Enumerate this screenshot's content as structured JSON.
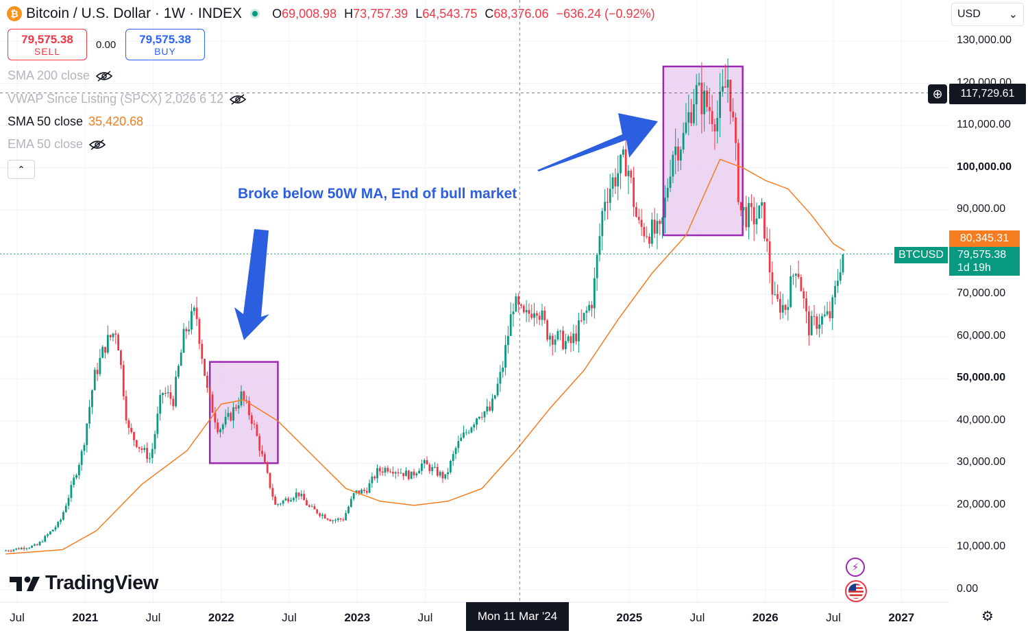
{
  "header": {
    "badge": "₿",
    "title": "Bitcoin / U.S. Dollar · 1W · INDEX",
    "open_label": "O",
    "open": "69,008.98",
    "high_label": "H",
    "high": "73,757.39",
    "low_label": "L",
    "low": "64,543.75",
    "close_label": "C",
    "close": "68,376.06",
    "change": "−636.24 (−0.92%)"
  },
  "trade": {
    "sell_price": "79,575.38",
    "sell_label": "SELL",
    "spread": "0.00",
    "buy_price": "79,575.38",
    "buy_label": "BUY"
  },
  "indicators": [
    {
      "label": "SMA 200 close",
      "value": "",
      "visible": false
    },
    {
      "label": "VWAP Since Listing (SPCX) 2,026 6 12",
      "value": "",
      "visible": false
    },
    {
      "label": "SMA 50 close",
      "value": "35,420.68",
      "visible": true
    },
    {
      "label": "EMA 50 close",
      "value": "",
      "visible": false
    }
  ],
  "collapse_icon": "chevron-up-icon",
  "collapse_glyph": "⌃",
  "currency": {
    "value": "USD",
    "icon": "chevron-down-icon",
    "glyph": "⌄"
  },
  "annotation": "Broke below 50W MA, End of bull market",
  "labels": {
    "crosshair_price": "117,729.61",
    "crosshair_date": "Mon 11 Mar '24",
    "sma_price": "80,345.31",
    "symbol": "BTCUSD",
    "last_price": "79,575.38",
    "countdown": "1d 19h",
    "plus_glyph": "⊕"
  },
  "logo_text": "TradingView",
  "icons": {
    "bolt": "⚡",
    "flag": "us-flag-icon",
    "settings": "⚙"
  },
  "colors": {
    "up": "#089981",
    "down": "#f23645",
    "sma": "#f57c1f",
    "box": "#9c27b0",
    "box_fill": "#e6c8ee",
    "arrow": "#2b5fe0",
    "crosshair": "#131722"
  },
  "chart_data": {
    "type": "candlestick",
    "timeframe": "1W",
    "y_axis": {
      "ticks": [
        "0.00",
        "10,000.00",
        "20,000.00",
        "30,000.00",
        "40,000.00",
        "50,000.00",
        "60,000.00",
        "70,000.00",
        "90,000.00",
        "100,000.00",
        "110,000.00",
        "120,000.00",
        "130,000.00"
      ],
      "bold": [
        "50,000.00",
        "100,000.00"
      ],
      "range": [
        0,
        138000
      ]
    },
    "x_axis": {
      "ticks": [
        "Jul",
        "2021",
        "Jul",
        "2022",
        "Jul",
        "2023",
        "Jul",
        "2025",
        "Jul",
        "2026",
        "Jul",
        "2027"
      ],
      "bold": [
        "2021",
        "2022",
        "2023",
        "2025",
        "2026",
        "2027"
      ]
    },
    "price_path": [
      [
        "2020-06",
        9200
      ],
      [
        "2020-09",
        10500
      ],
      [
        "2020-11",
        16000
      ],
      [
        "2020-12",
        24000
      ],
      [
        "2021-01",
        33000
      ],
      [
        "2021-02",
        50000
      ],
      [
        "2021-03",
        58000
      ],
      [
        "2021-04",
        62000
      ],
      [
        "2021-05",
        38000
      ],
      [
        "2021-06",
        34000
      ],
      [
        "2021-07",
        31000
      ],
      [
        "2021-08",
        47000
      ],
      [
        "2021-09",
        45000
      ],
      [
        "2021-10",
        61000
      ],
      [
        "2021-11",
        66000
      ],
      [
        "2021-12",
        47000
      ],
      [
        "2022-01",
        38000
      ],
      [
        "2022-02",
        41000
      ],
      [
        "2022-03",
        46000
      ],
      [
        "2022-04",
        40000
      ],
      [
        "2022-05",
        30000
      ],
      [
        "2022-06",
        20000
      ],
      [
        "2022-08",
        23000
      ],
      [
        "2022-09",
        19500
      ],
      [
        "2022-11",
        16500
      ],
      [
        "2022-12",
        16800
      ],
      [
        "2023-01",
        23000
      ],
      [
        "2023-02",
        23500
      ],
      [
        "2023-03",
        28000
      ],
      [
        "2023-04",
        29000
      ],
      [
        "2023-06",
        27000
      ],
      [
        "2023-07",
        30000
      ],
      [
        "2023-09",
        26500
      ],
      [
        "2023-10",
        34000
      ],
      [
        "2023-12",
        42000
      ],
      [
        "2024-01",
        42500
      ],
      [
        "2024-02",
        52000
      ],
      [
        "2024-03",
        68000
      ],
      [
        "2024-04",
        64000
      ],
      [
        "2024-05",
        68000
      ],
      [
        "2024-06",
        61000
      ],
      [
        "2024-08",
        58000
      ],
      [
        "2024-09",
        63000
      ],
      [
        "2024-10",
        69000
      ],
      [
        "2024-11",
        93000
      ],
      [
        "2024-12",
        98000
      ],
      [
        "2025-01",
        102000
      ],
      [
        "2025-02",
        86000
      ],
      [
        "2025-04",
        84000
      ],
      [
        "2025-05",
        104000
      ],
      [
        "2025-06",
        107000
      ],
      [
        "2025-07",
        118000
      ],
      [
        "2025-08",
        115000
      ],
      [
        "2025-09",
        112000
      ],
      [
        "2025-10",
        122000
      ],
      [
        "2025-11",
        90000
      ],
      [
        "2025-12",
        88000
      ],
      [
        "2026-01",
        89000
      ],
      [
        "2026-02",
        68000
      ],
      [
        "2026-03",
        67000
      ],
      [
        "2026-04",
        78000
      ],
      [
        "2026-05",
        62000
      ],
      [
        "2026-06",
        64000
      ],
      [
        "2026-07",
        65000
      ],
      [
        "2026-08",
        79575
      ]
    ],
    "series": [
      {
        "name": "SMA 50 close",
        "points": [
          [
            "2020-06",
            8500
          ],
          [
            "2020-11",
            9500
          ],
          [
            "2021-02",
            14000
          ],
          [
            "2021-06",
            25000
          ],
          [
            "2021-10",
            33000
          ],
          [
            "2022-01",
            44000
          ],
          [
            "2022-03",
            45000
          ],
          [
            "2022-06",
            40000
          ],
          [
            "2022-09",
            32000
          ],
          [
            "2022-12",
            24000
          ],
          [
            "2023-03",
            21000
          ],
          [
            "2023-06",
            20000
          ],
          [
            "2023-09",
            21000
          ],
          [
            "2023-12",
            24000
          ],
          [
            "2024-03",
            33000
          ],
          [
            "2024-06",
            43000
          ],
          [
            "2024-09",
            52000
          ],
          [
            "2024-12",
            64000
          ],
          [
            "2025-03",
            75000
          ],
          [
            "2025-06",
            84000
          ],
          [
            "2025-09",
            102000
          ],
          [
            "2025-11",
            100000
          ],
          [
            "2026-01",
            97000
          ],
          [
            "2026-03",
            95000
          ],
          [
            "2026-05",
            89000
          ],
          [
            "2026-07",
            82000
          ],
          [
            "2026-08",
            80345
          ]
        ]
      }
    ],
    "boxes": [
      {
        "from": "2021-12",
        "to": "2022-06",
        "low": 30000,
        "high": 54000
      },
      {
        "from": "2025-04",
        "to": "2025-11",
        "low": 84000,
        "high": 124000
      }
    ],
    "crosshair": {
      "date": "2024-03-11",
      "price": 117729.61
    }
  }
}
